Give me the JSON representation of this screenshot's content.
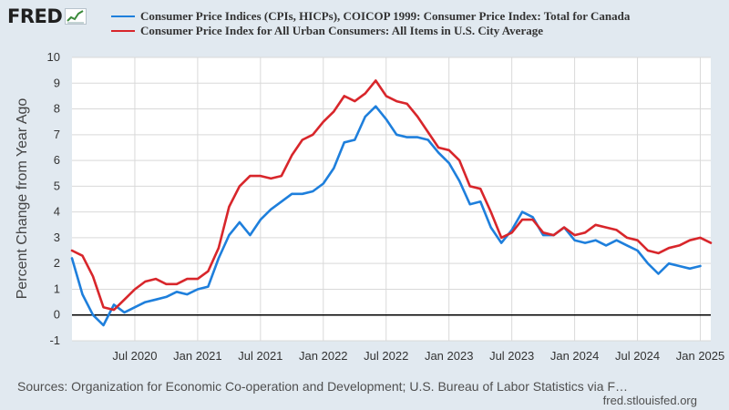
{
  "header": {
    "logo_text": "FRED",
    "logo_icon": "line-chart-icon"
  },
  "colors": {
    "background": "#e1e9f0",
    "plot_background": "#ffffff",
    "grid": "#d9d9d9",
    "canada": "#1e7fdc",
    "us": "#d8262b",
    "zero_line": "#000000"
  },
  "chart_data": {
    "type": "line",
    "ylabel": "Percent Change from Year Ago",
    "xlabel": "",
    "ylim": [
      -1,
      10
    ],
    "yticks": [
      "10",
      "9",
      "8",
      "7",
      "6",
      "5",
      "4",
      "3",
      "2",
      "1",
      "0",
      "-1"
    ],
    "xticks": [
      {
        "date": "2020-07",
        "label": "Jul 2020"
      },
      {
        "date": "2021-01",
        "label": "Jan 2021"
      },
      {
        "date": "2021-07",
        "label": "Jul 2021"
      },
      {
        "date": "2022-01",
        "label": "Jan 2022"
      },
      {
        "date": "2022-07",
        "label": "Jul 2022"
      },
      {
        "date": "2023-01",
        "label": "Jan 2023"
      },
      {
        "date": "2023-07",
        "label": "Jul 2023"
      },
      {
        "date": "2024-01",
        "label": "Jan 2024"
      },
      {
        "date": "2024-07",
        "label": "Jul 2024"
      },
      {
        "date": "2025-01",
        "label": "Jan 2025"
      }
    ],
    "grid": true,
    "legend": "top",
    "series": [
      {
        "name": "Consumer Price Indices (CPIs, HICPs), COICOP 1999: Consumer Price Index: Total for Canada",
        "color": "#1e7fdc",
        "points": [
          [
            "2020-01",
            2.2
          ],
          [
            "2020-02",
            0.8
          ],
          [
            "2020-03",
            0.0
          ],
          [
            "2020-04",
            -0.4
          ],
          [
            "2020-05",
            0.4
          ],
          [
            "2020-06",
            0.1
          ],
          [
            "2020-07",
            0.3
          ],
          [
            "2020-08",
            0.5
          ],
          [
            "2020-09",
            0.6
          ],
          [
            "2020-10",
            0.7
          ],
          [
            "2020-11",
            0.9
          ],
          [
            "2020-12",
            0.8
          ],
          [
            "2021-01",
            1.0
          ],
          [
            "2021-02",
            1.1
          ],
          [
            "2021-03",
            2.2
          ],
          [
            "2021-04",
            3.1
          ],
          [
            "2021-05",
            3.6
          ],
          [
            "2021-06",
            3.1
          ],
          [
            "2021-07",
            3.7
          ],
          [
            "2021-08",
            4.1
          ],
          [
            "2021-09",
            4.4
          ],
          [
            "2021-10",
            4.7
          ],
          [
            "2021-11",
            4.7
          ],
          [
            "2021-12",
            4.8
          ],
          [
            "2022-01",
            5.1
          ],
          [
            "2022-02",
            5.7
          ],
          [
            "2022-03",
            6.7
          ],
          [
            "2022-04",
            6.8
          ],
          [
            "2022-05",
            7.7
          ],
          [
            "2022-06",
            8.1
          ],
          [
            "2022-07",
            7.6
          ],
          [
            "2022-08",
            7.0
          ],
          [
            "2022-09",
            6.9
          ],
          [
            "2022-10",
            6.9
          ],
          [
            "2022-11",
            6.8
          ],
          [
            "2022-12",
            6.3
          ],
          [
            "2023-01",
            5.9
          ],
          [
            "2023-02",
            5.2
          ],
          [
            "2023-03",
            4.3
          ],
          [
            "2023-04",
            4.4
          ],
          [
            "2023-05",
            3.4
          ],
          [
            "2023-06",
            2.8
          ],
          [
            "2023-07",
            3.3
          ],
          [
            "2023-08",
            4.0
          ],
          [
            "2023-09",
            3.8
          ],
          [
            "2023-10",
            3.1
          ],
          [
            "2023-11",
            3.1
          ],
          [
            "2023-12",
            3.4
          ],
          [
            "2024-01",
            2.9
          ],
          [
            "2024-02",
            2.8
          ],
          [
            "2024-03",
            2.9
          ],
          [
            "2024-04",
            2.7
          ],
          [
            "2024-05",
            2.9
          ],
          [
            "2024-06",
            2.7
          ],
          [
            "2024-07",
            2.5
          ],
          [
            "2024-08",
            2.0
          ],
          [
            "2024-09",
            1.6
          ],
          [
            "2024-10",
            2.0
          ],
          [
            "2024-11",
            1.9
          ],
          [
            "2024-12",
            1.8
          ],
          [
            "2025-01",
            1.9
          ]
        ]
      },
      {
        "name": "Consumer Price Index for All Urban Consumers: All Items in U.S. City Average",
        "color": "#d8262b",
        "points": [
          [
            "2020-01",
            2.5
          ],
          [
            "2020-02",
            2.3
          ],
          [
            "2020-03",
            1.5
          ],
          [
            "2020-04",
            0.3
          ],
          [
            "2020-05",
            0.2
          ],
          [
            "2020-06",
            0.6
          ],
          [
            "2020-07",
            1.0
          ],
          [
            "2020-08",
            1.3
          ],
          [
            "2020-09",
            1.4
          ],
          [
            "2020-10",
            1.2
          ],
          [
            "2020-11",
            1.2
          ],
          [
            "2020-12",
            1.4
          ],
          [
            "2021-01",
            1.4
          ],
          [
            "2021-02",
            1.7
          ],
          [
            "2021-03",
            2.6
          ],
          [
            "2021-04",
            4.2
          ],
          [
            "2021-05",
            5.0
          ],
          [
            "2021-06",
            5.4
          ],
          [
            "2021-07",
            5.4
          ],
          [
            "2021-08",
            5.3
          ],
          [
            "2021-09",
            5.4
          ],
          [
            "2021-10",
            6.2
          ],
          [
            "2021-11",
            6.8
          ],
          [
            "2021-12",
            7.0
          ],
          [
            "2022-01",
            7.5
          ],
          [
            "2022-02",
            7.9
          ],
          [
            "2022-03",
            8.5
          ],
          [
            "2022-04",
            8.3
          ],
          [
            "2022-05",
            8.6
          ],
          [
            "2022-06",
            9.1
          ],
          [
            "2022-07",
            8.5
          ],
          [
            "2022-08",
            8.3
          ],
          [
            "2022-09",
            8.2
          ],
          [
            "2022-10",
            7.7
          ],
          [
            "2022-11",
            7.1
          ],
          [
            "2022-12",
            6.5
          ],
          [
            "2023-01",
            6.4
          ],
          [
            "2023-02",
            6.0
          ],
          [
            "2023-03",
            5.0
          ],
          [
            "2023-04",
            4.9
          ],
          [
            "2023-05",
            4.0
          ],
          [
            "2023-06",
            3.0
          ],
          [
            "2023-07",
            3.2
          ],
          [
            "2023-08",
            3.7
          ],
          [
            "2023-09",
            3.7
          ],
          [
            "2023-10",
            3.2
          ],
          [
            "2023-11",
            3.1
          ],
          [
            "2023-12",
            3.4
          ],
          [
            "2024-01",
            3.1
          ],
          [
            "2024-02",
            3.2
          ],
          [
            "2024-03",
            3.5
          ],
          [
            "2024-04",
            3.4
          ],
          [
            "2024-05",
            3.3
          ],
          [
            "2024-06",
            3.0
          ],
          [
            "2024-07",
            2.9
          ],
          [
            "2024-08",
            2.5
          ],
          [
            "2024-09",
            2.4
          ],
          [
            "2024-10",
            2.6
          ],
          [
            "2024-11",
            2.7
          ],
          [
            "2024-12",
            2.9
          ],
          [
            "2025-01",
            3.0
          ],
          [
            "2025-02",
            2.8
          ]
        ]
      }
    ]
  },
  "footer": {
    "sources": "Sources: Organization for Economic Co-operation and Development; U.S. Bureau of Labor Statistics via F…",
    "url": "fred.stlouisfed.org"
  }
}
